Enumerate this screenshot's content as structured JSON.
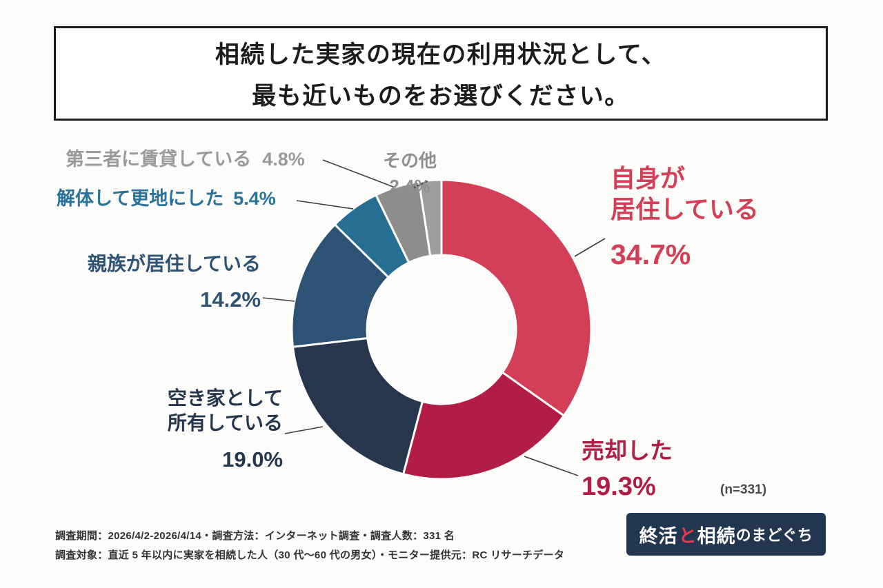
{
  "title": {
    "line1": "相続した実家の現在の利用状況として、",
    "line2": "最も近いものをお選びください。"
  },
  "chart_data": {
    "type": "pie",
    "subtype": "donut",
    "title": "相続した実家の現在の利用状況",
    "categories": [
      "自身が居住している",
      "売却した",
      "空き家として所有している",
      "親族が居住している",
      "解体して更地にした",
      "第三者に賃貸している",
      "その他"
    ],
    "values": [
      34.7,
      19.3,
      19.0,
      14.2,
      5.4,
      4.8,
      2.4
    ],
    "unit": "%",
    "colors": [
      "#d23f56",
      "#b21d46",
      "#25364d",
      "#2e5274",
      "#266f93",
      "#8d8d8d",
      "#9e9e9e"
    ],
    "start_angle_deg": 0,
    "direction": "clockwise",
    "donut_hole_ratio": 0.5,
    "sample_size": 331,
    "legend_position": "callouts"
  },
  "callouts": {
    "third_party": {
      "label": "第三者に賃貸している",
      "value": "4.8%"
    },
    "other": {
      "label": "その他",
      "value": "2.4%"
    },
    "demolished": {
      "label": "解体して更地にした",
      "value": "5.4%"
    },
    "relatives": {
      "label": "親族が居住している",
      "value": "14.2%"
    },
    "vacant": {
      "line1": "空き家として",
      "line2": "所有している",
      "value": "19.0%"
    },
    "self": {
      "line1": "自身が",
      "line2": "居住している",
      "value": "34.7%"
    },
    "sold": {
      "label": "売却した",
      "value": "19.3%"
    },
    "sample_note": "(n=331)"
  },
  "footer": {
    "line1": "調査期間：2026/4/2-2026/4/14・調査方法：インターネット調査・調査人数：331 名",
    "line2": "調査対象：直近 5 年以内に実家を相続した人（30 代〜60 代の男女）・モニター提供元：RC リサーチデータ"
  },
  "logo": {
    "part1": "終活",
    "part2": "と",
    "part3": "相続",
    "part4": "のまどぐち"
  }
}
